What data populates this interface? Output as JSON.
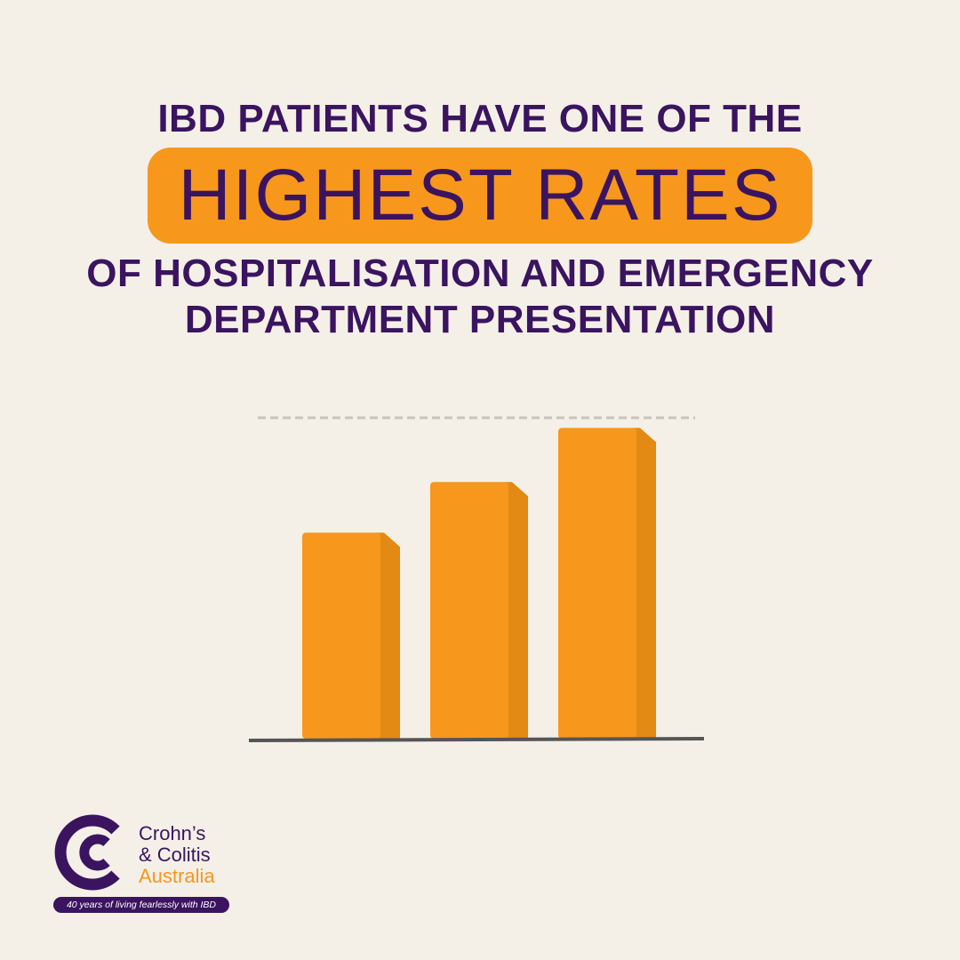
{
  "headline": {
    "line1": "IBD PATIENTS HAVE ONE OF THE",
    "highlight": "HIGHEST RATES",
    "line3": "OF HOSPITALISATION AND EMERGENCY",
    "line4": "DEPARTMENT PRESENTATION"
  },
  "colors": {
    "background": "#f4f0e8",
    "text": "#3b1460",
    "accent": "#f7971c",
    "bar_side": "#e28a14",
    "baseline": "#555555",
    "dashed_line": "#c8c4bd"
  },
  "chart_data": {
    "type": "bar",
    "categories": [
      "",
      "",
      ""
    ],
    "values": [
      6.1,
      7.6,
      9.2
    ],
    "title": "",
    "xlabel": "",
    "ylabel": "",
    "ylim": [
      0,
      9.5
    ],
    "grid": false,
    "reference_line": 9.5
  },
  "logo": {
    "icon": "crohns-colitis-c-logo-icon",
    "line1": "Crohn’s",
    "line2": "& Colitis",
    "line3": "Australia",
    "tagline": "40 years of living fearlessly with IBD"
  }
}
